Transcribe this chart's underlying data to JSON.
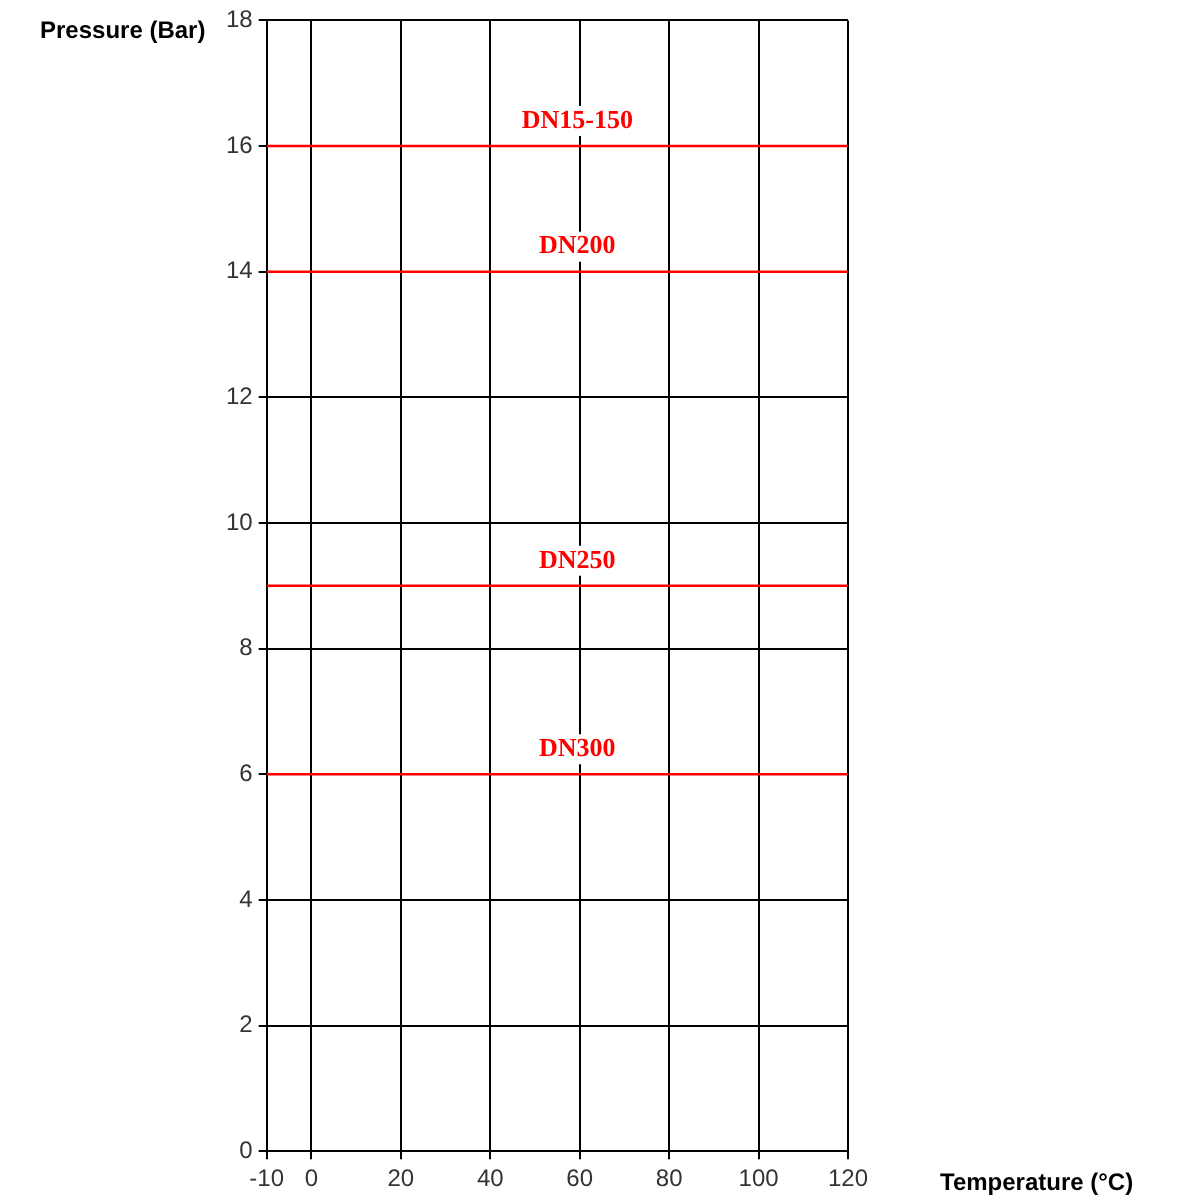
{
  "chart_data": {
    "type": "line",
    "xlabel": "Temperature (°C)",
    "ylabel": "Pressure (Bar)",
    "xlim": [
      -10,
      120
    ],
    "xticks": [
      -10,
      0,
      20,
      40,
      60,
      80,
      100,
      120
    ],
    "ylim": [
      0,
      18
    ],
    "yticks": [
      0,
      2,
      4,
      6,
      8,
      10,
      12,
      14,
      16,
      18
    ],
    "grid": true,
    "legend": false,
    "marker": "none",
    "x": [
      -10,
      120
    ],
    "series": [
      {
        "name": "DN15-150",
        "color": "#ff0000",
        "values": [
          16,
          16
        ]
      },
      {
        "name": "DN200",
        "color": "#ff0000",
        "values": [
          14,
          14
        ]
      },
      {
        "name": "DN250",
        "color": "#ff0000",
        "values": [
          9,
          9
        ]
      },
      {
        "name": "DN300",
        "color": "#ff0000",
        "values": [
          6,
          6
        ]
      }
    ]
  }
}
